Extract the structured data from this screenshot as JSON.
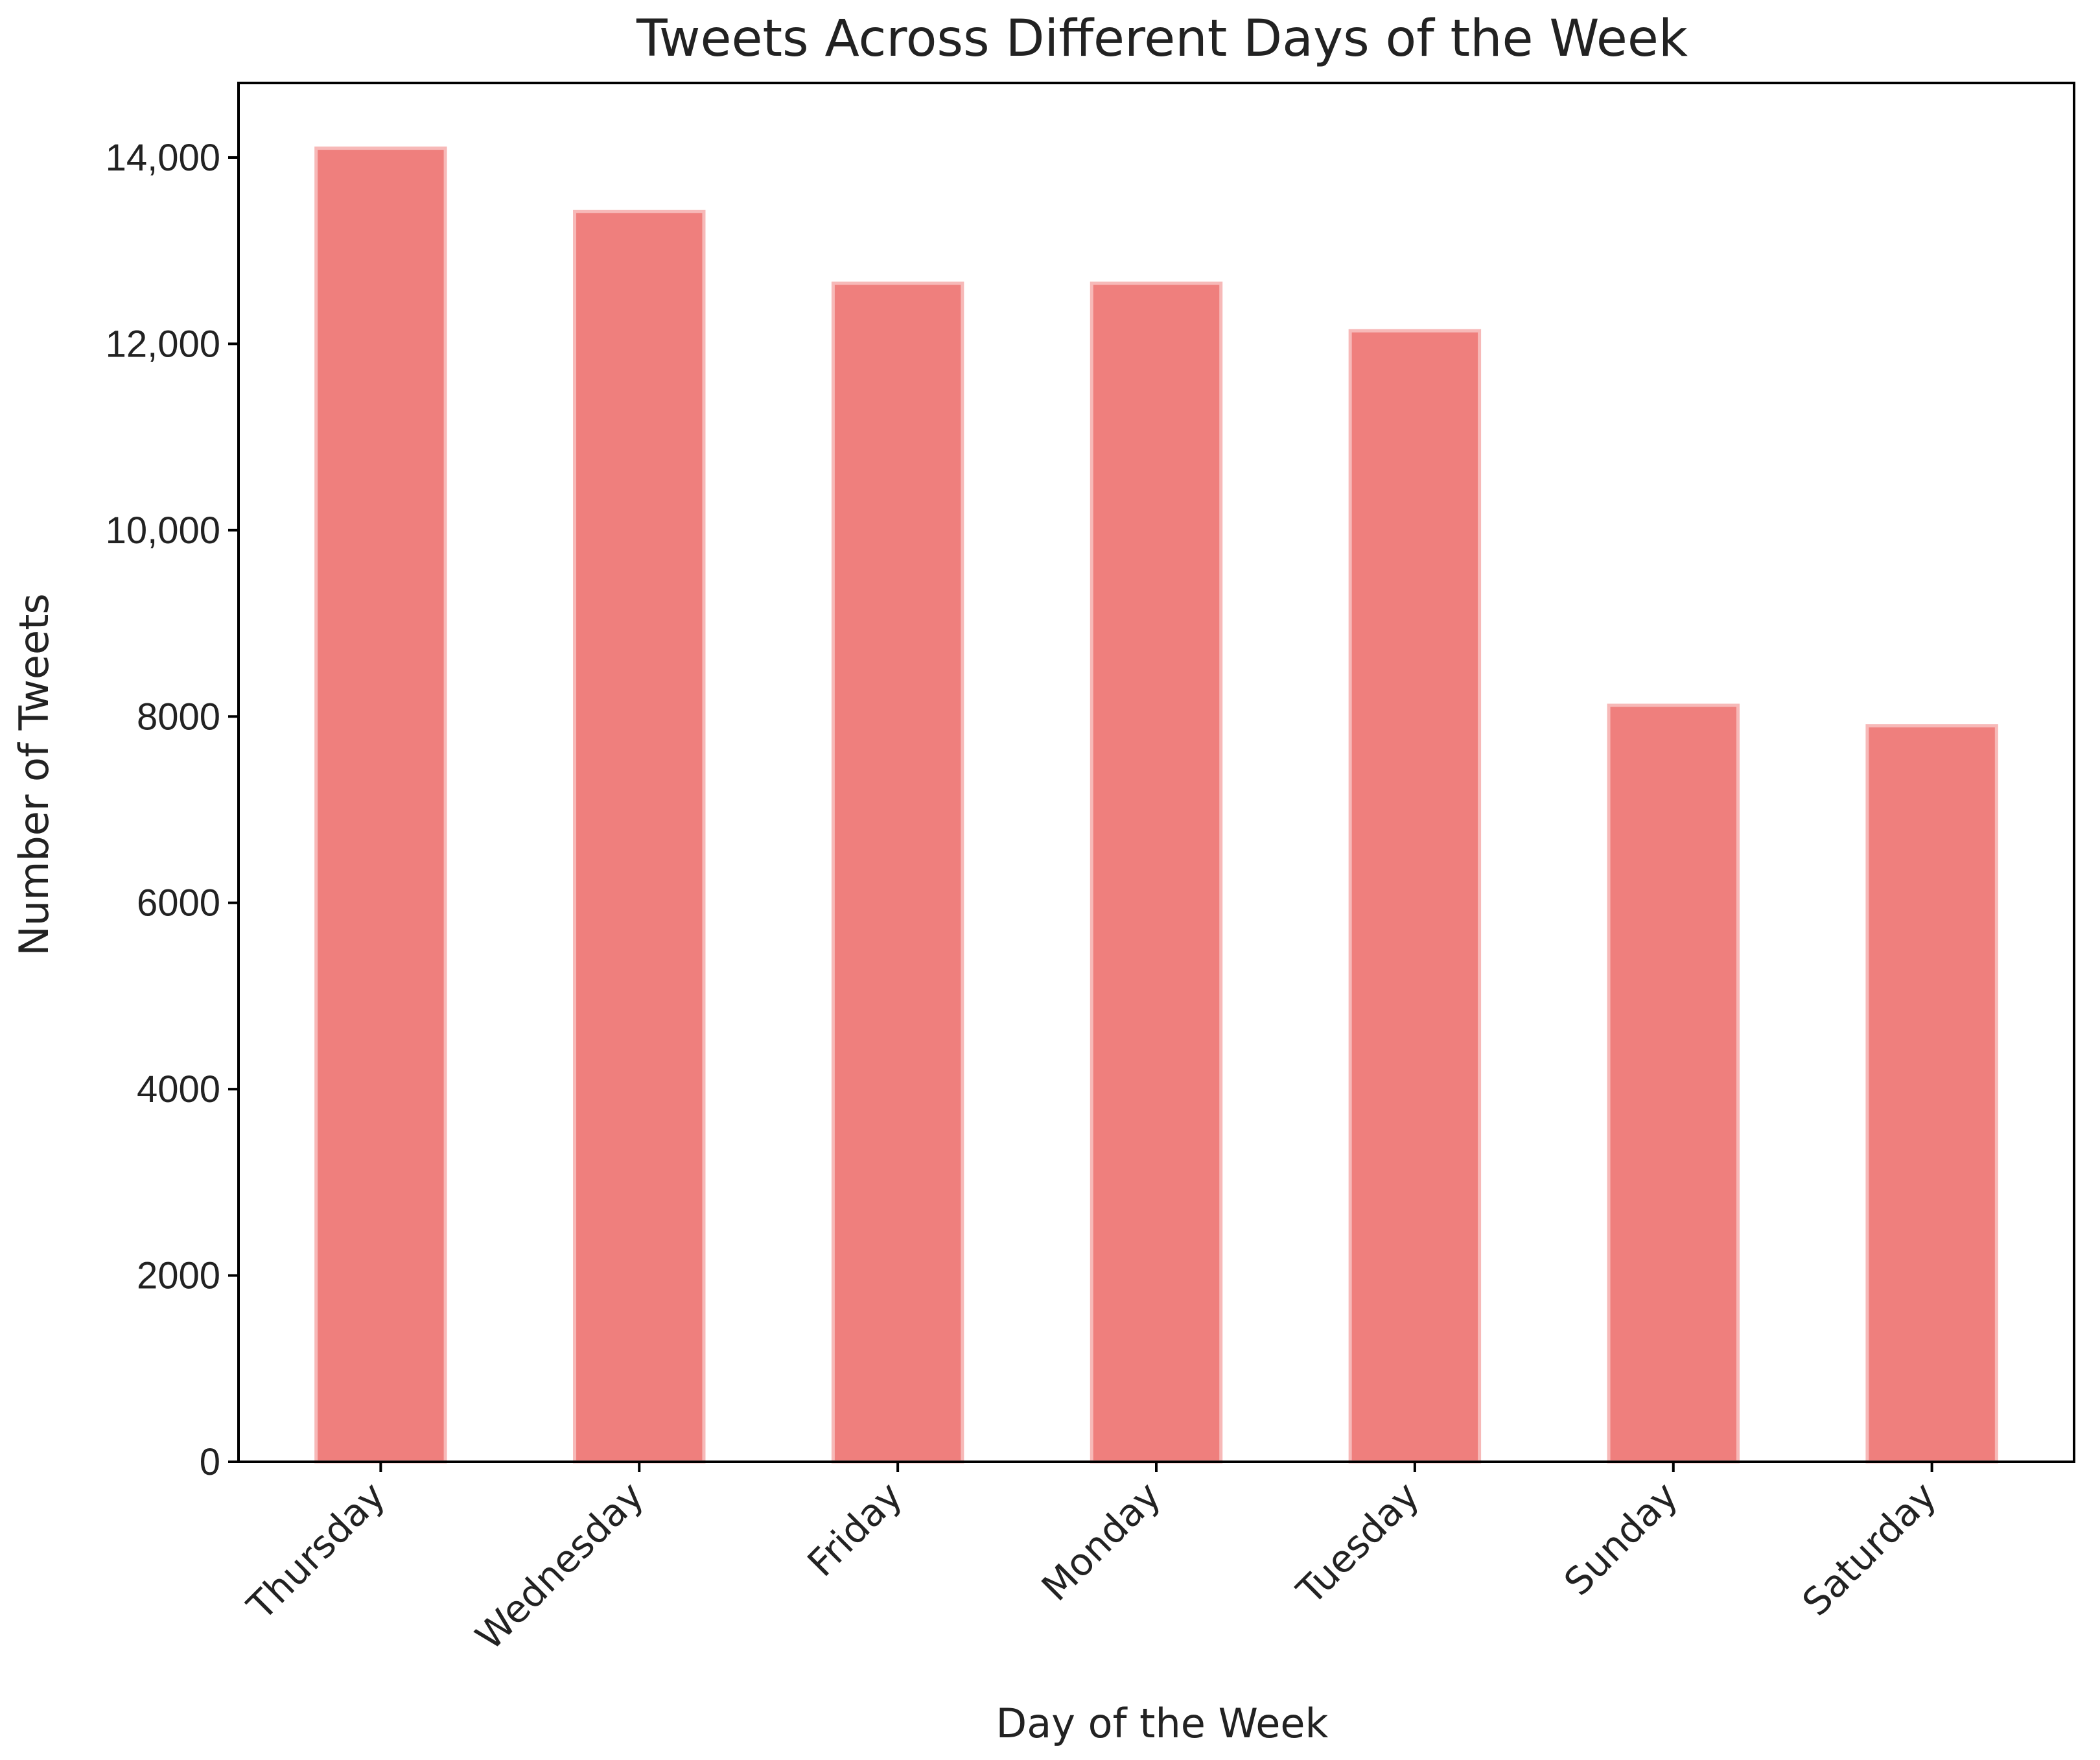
{
  "chart_data": {
    "type": "bar",
    "title": "Tweets Across Different Days of the Week",
    "xlabel": "Day of the Week",
    "ylabel": "Number of Tweets",
    "categories": [
      "Thursday",
      "Wednesday",
      "Friday",
      "Monday",
      "Tuesday",
      "Sunday",
      "Saturday"
    ],
    "values": [
      14100,
      13420,
      12650,
      12650,
      12140,
      8120,
      7900
    ],
    "ylim": [
      0,
      14800
    ],
    "yticks": [
      0,
      2000,
      4000,
      6000,
      8000,
      10000,
      12000,
      14000
    ],
    "ytick_labels": [
      "0",
      "2000",
      "4000",
      "6000",
      "8000",
      "10,000",
      "12,000",
      "14,000"
    ],
    "bar_color": "#ef7f7d",
    "bar_edge_color": "#f7b9b8",
    "axis_color": "#000000",
    "grid": false,
    "legend": false
  }
}
